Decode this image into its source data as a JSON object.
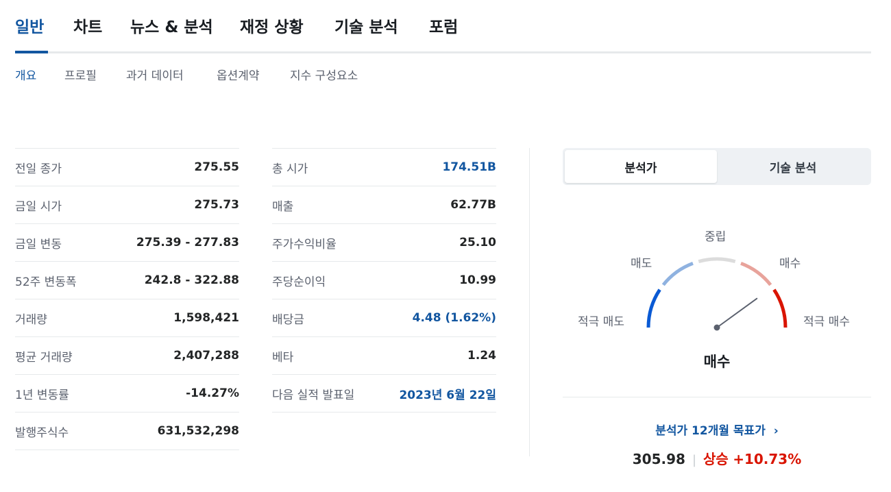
{
  "main_tabs": [
    "일반",
    "차트",
    "뉴스 & 분석",
    "재정 상황",
    "기술 분석",
    "포럼"
  ],
  "sub_tabs": [
    "개요",
    "프로필",
    "과거 데이터",
    "옵션계약",
    "지수 구성요소"
  ],
  "stats_left": [
    {
      "label": "전일 종가",
      "value": "275.55"
    },
    {
      "label": "금일 시가",
      "value": "275.73"
    },
    {
      "label": "금일 변동",
      "value": "275.39 - 277.83"
    },
    {
      "label": "52주 변동폭",
      "value": "242.8 - 322.88"
    },
    {
      "label": "거래량",
      "value": "1,598,421"
    },
    {
      "label": "평균 거래량",
      "value": "2,407,288"
    },
    {
      "label": "1년 변동률",
      "value": "-14.27%"
    },
    {
      "label": "발행주식수",
      "value": "631,532,298"
    }
  ],
  "stats_right": [
    {
      "label": "총 시가",
      "value": "174.51B",
      "link": true
    },
    {
      "label": "매출",
      "value": "62.77B",
      "link": false
    },
    {
      "label": "주가수익비율",
      "value": "25.10",
      "link": false
    },
    {
      "label": "주당순이익",
      "value": "10.99",
      "link": false
    },
    {
      "label": "배당금",
      "value": "4.48 (1.62%)",
      "link": true
    },
    {
      "label": "베타",
      "value": "1.24",
      "link": false
    },
    {
      "label": "다음 실적 발표일",
      "value": "2023년 6월 22일",
      "link": true
    }
  ],
  "toggle": {
    "analyst": "분석가",
    "technical": "기술 분석"
  },
  "gauge": {
    "labels": {
      "strong_sell": "적극 매도",
      "sell": "매도",
      "neutral": "중립",
      "buy": "매수",
      "strong_buy": "적극 매수"
    },
    "result": "매수",
    "needle_level": 0.8,
    "colors": {
      "strong_sell": "#0a5ad4",
      "sell": "#8fb2e0",
      "neutral": "#dcdcdc",
      "buy": "#e8a39b",
      "strong_buy": "#d91400"
    }
  },
  "target": {
    "link_label": "분석가 12개월 목표가",
    "price": "305.98",
    "direction": "상승",
    "change": "+10.73%"
  }
}
